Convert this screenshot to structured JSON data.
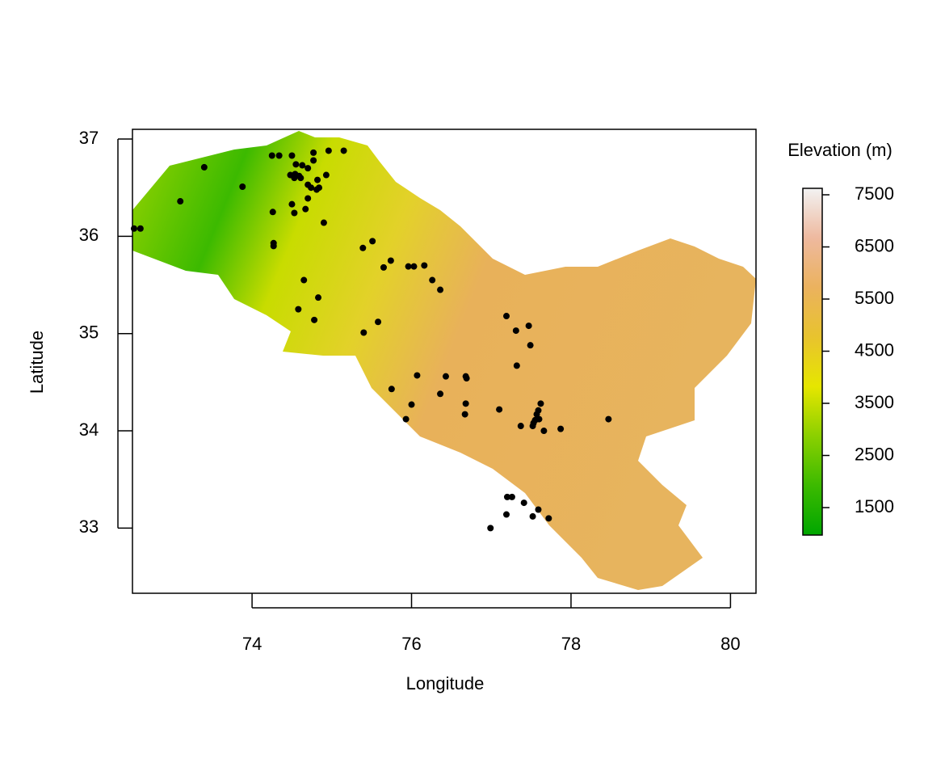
{
  "chart_data": {
    "type": "scatter",
    "xlabel": "Longitude",
    "ylabel": "Latitude",
    "xlim": [
      72.5,
      80.32
    ],
    "ylim": [
      32.33,
      37.1
    ],
    "xticks": [
      74,
      76,
      78,
      80
    ],
    "yticks": [
      33,
      34,
      35,
      36,
      37
    ],
    "color": "#000000",
    "x": [
      72.52,
      72.6,
      73.1,
      73.4,
      73.88,
      74.25,
      74.34,
      74.5,
      74.55,
      74.63,
      74.7,
      74.77,
      74.77,
      74.96,
      75.15,
      74.26,
      74.53,
      74.67,
      74.7,
      74.5,
      74.54,
      74.59,
      74.48,
      74.53,
      74.61,
      74.7,
      74.74,
      74.81,
      74.84,
      74.93,
      74.82,
      74.9,
      74.27,
      74.27,
      74.65,
      74.83,
      74.58,
      74.78,
      75.39,
      75.51,
      75.74,
      75.65,
      75.96,
      76.03,
      76.16,
      76.26,
      76.36,
      75.58,
      75.4,
      77.19,
      77.47,
      77.31,
      77.49,
      77.32,
      76.07,
      76.43,
      76.68,
      76.69,
      75.75,
      76.36,
      76.0,
      76.68,
      76.67,
      75.93,
      77.1,
      77.62,
      77.59,
      77.57,
      77.6,
      77.55,
      77.53,
      77.37,
      77.52,
      77.66,
      77.87,
      78.47,
      77.2,
      77.26,
      77.41,
      77.19,
      77.52,
      77.59,
      77.72,
      76.99
    ],
    "values": [
      36.08,
      36.08,
      36.36,
      36.71,
      36.51,
      36.83,
      36.83,
      36.83,
      36.74,
      36.73,
      36.7,
      36.78,
      36.86,
      36.88,
      36.88,
      36.25,
      36.24,
      36.28,
      36.39,
      36.33,
      36.64,
      36.62,
      36.63,
      36.6,
      36.6,
      36.53,
      36.5,
      36.48,
      36.5,
      36.63,
      36.58,
      36.14,
      35.93,
      35.9,
      35.55,
      35.37,
      35.25,
      35.14,
      35.88,
      35.95,
      35.75,
      35.68,
      35.69,
      35.69,
      35.7,
      35.55,
      35.45,
      35.12,
      35.01,
      35.18,
      35.08,
      35.03,
      34.88,
      34.67,
      34.57,
      34.56,
      34.56,
      34.54,
      34.43,
      34.38,
      34.27,
      34.28,
      34.17,
      34.12,
      34.22,
      34.28,
      34.21,
      34.17,
      34.12,
      34.11,
      34.08,
      34.05,
      34.05,
      34.0,
      34.02,
      34.12,
      33.32,
      33.32,
      33.26,
      33.14,
      33.12,
      33.19,
      33.1,
      33.0
    ],
    "colorbar": {
      "title": "Elevation (m)",
      "lim": [
        973,
        7624
      ],
      "ticks": [
        1500,
        2500,
        3500,
        4500,
        5500,
        6500,
        7500
      ],
      "colors": [
        "#00a600",
        "#3cba00",
        "#8bd000",
        "#e6e600",
        "#e8c32e",
        "#ebb25e",
        "#eeb99f",
        "#f2f2f2"
      ]
    }
  }
}
